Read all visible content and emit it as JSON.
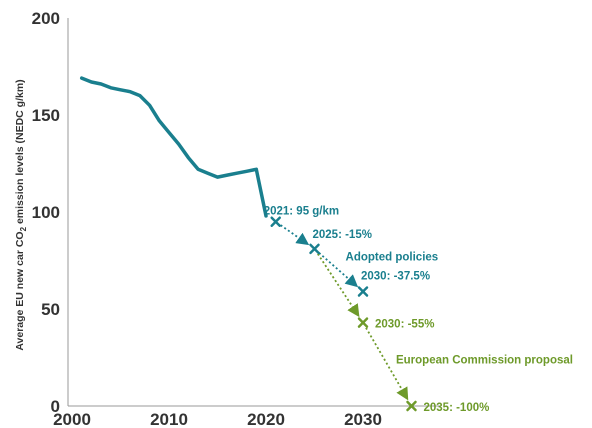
{
  "chart_data": {
    "type": "line",
    "ylabel_pre": "Average EU new car CO",
    "ylabel_sub": "2",
    "ylabel_post": " emission levels (NEDC g/km)",
    "xlim": [
      2000,
      2036
    ],
    "ylim": [
      0,
      200
    ],
    "x_ticks": [
      2000,
      2010,
      2020,
      2030
    ],
    "y_ticks": [
      0,
      50,
      100,
      150,
      200
    ],
    "grid": false,
    "colors": {
      "history": "#1a7f8e",
      "adopted": "#1a7f8e",
      "proposal": "#6e9a2a"
    },
    "series": [
      {
        "x": [
          2001,
          2002,
          2003,
          2004,
          2005,
          2006,
          2007,
          2008,
          2009,
          2010,
          2011,
          2012,
          2013,
          2014,
          2015,
          2016,
          2017,
          2018,
          2019,
          2020
        ],
        "y": [
          169,
          167,
          166,
          164,
          163,
          162,
          160,
          155,
          147,
          141,
          135,
          128,
          122,
          120,
          118,
          119,
          120,
          121,
          122,
          98
        ]
      },
      {
        "name": "Adopted policies",
        "x": [
          2021,
          2025,
          2030
        ],
        "y": [
          95,
          81,
          59
        ]
      },
      {
        "name": "European Commission proposal",
        "x": [
          2025,
          2030,
          2035
        ],
        "y": [
          81,
          43,
          0
        ]
      }
    ],
    "annotations": [
      {
        "text": "2021: 95 g/km",
        "series": "adopted"
      },
      {
        "text": "2025: -15%",
        "series": "adopted"
      },
      {
        "text": "2030: -37.5%",
        "series": "adopted"
      },
      {
        "text": "2030: -55%",
        "series": "proposal"
      },
      {
        "text": "2035: -100%",
        "series": "proposal"
      }
    ]
  }
}
